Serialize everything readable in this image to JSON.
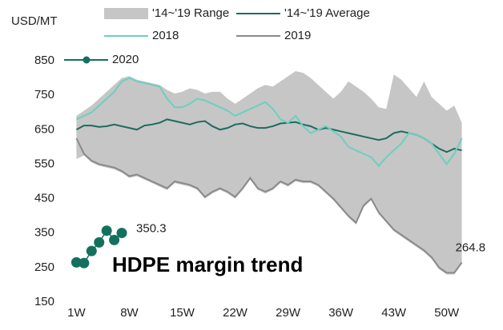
{
  "chart_data": {
    "type": "line",
    "y_label": "USD/MT",
    "annotation": "HDPE margin trend",
    "legend": "top",
    "x": [
      1,
      2,
      3,
      4,
      5,
      6,
      7,
      8,
      9,
      10,
      11,
      12,
      13,
      14,
      15,
      16,
      17,
      18,
      19,
      20,
      21,
      22,
      23,
      24,
      25,
      26,
      27,
      28,
      29,
      30,
      31,
      32,
      33,
      34,
      35,
      36,
      37,
      38,
      39,
      40,
      41,
      42,
      43,
      44,
      45,
      46,
      47,
      48,
      49,
      50,
      51,
      52
    ],
    "xlim": [
      0,
      53
    ],
    "xticks": [
      {
        "value": 1,
        "label": "1W"
      },
      {
        "value": 8,
        "label": "8W"
      },
      {
        "value": 15,
        "label": "15W"
      },
      {
        "value": 22,
        "label": "22W"
      },
      {
        "value": 29,
        "label": "29W"
      },
      {
        "value": 36,
        "label": "36W"
      },
      {
        "value": 43,
        "label": "43W"
      },
      {
        "value": 50,
        "label": "50W"
      }
    ],
    "ylim": [
      150,
      850
    ],
    "yticks": [
      150,
      250,
      350,
      450,
      550,
      650,
      750,
      850
    ],
    "band": {
      "name": "'14~'19 Range",
      "color": "#c6c6c6",
      "high": [
        690,
        705,
        720,
        740,
        760,
        780,
        800,
        805,
        795,
        790,
        785,
        780,
        765,
        755,
        760,
        770,
        765,
        755,
        760,
        760,
        740,
        725,
        740,
        755,
        770,
        780,
        775,
        790,
        805,
        820,
        815,
        800,
        780,
        760,
        740,
        760,
        790,
        775,
        760,
        740,
        715,
        710,
        810,
        795,
        770,
        745,
        790,
        745,
        725,
        705,
        720,
        670
      ],
      "low": [
        565,
        575,
        555,
        545,
        540,
        535,
        525,
        510,
        515,
        505,
        495,
        485,
        475,
        495,
        490,
        485,
        475,
        450,
        465,
        475,
        465,
        450,
        475,
        505,
        475,
        465,
        475,
        495,
        485,
        500,
        495,
        495,
        485,
        465,
        445,
        420,
        395,
        375,
        425,
        445,
        405,
        380,
        355,
        340,
        325,
        310,
        295,
        275,
        245,
        230,
        230,
        260
      ]
    },
    "series": [
      {
        "name": "'14~'19 Average",
        "color": "#1d6b60",
        "markers": false,
        "values": [
          650,
          662,
          662,
          658,
          660,
          665,
          660,
          655,
          650,
          662,
          665,
          670,
          680,
          675,
          670,
          665,
          672,
          675,
          660,
          650,
          655,
          665,
          668,
          660,
          655,
          655,
          660,
          668,
          670,
          672,
          665,
          660,
          650,
          655,
          650,
          645,
          640,
          635,
          630,
          625,
          620,
          625,
          640,
          645,
          640,
          635,
          625,
          610,
          595,
          585,
          595,
          590
        ]
      },
      {
        "name": "2018",
        "color": "#6ccfc0",
        "markers": false,
        "values": [
          680,
          690,
          700,
          720,
          740,
          760,
          790,
          800,
          790,
          785,
          780,
          775,
          740,
          715,
          715,
          725,
          740,
          735,
          725,
          715,
          705,
          690,
          700,
          710,
          720,
          730,
          710,
          680,
          670,
          690,
          660,
          640,
          650,
          660,
          645,
          630,
          600,
          590,
          580,
          570,
          545,
          570,
          590,
          610,
          640,
          635,
          625,
          610,
          580,
          550,
          580,
          625
        ]
      },
      {
        "name": "2019",
        "color": "#8a8a8a",
        "markers": false,
        "values": [
          625,
          580,
          560,
          550,
          545,
          540,
          530,
          515,
          520,
          510,
          500,
          490,
          480,
          500,
          495,
          490,
          480,
          455,
          470,
          480,
          470,
          455,
          480,
          510,
          480,
          470,
          480,
          500,
          490,
          505,
          500,
          500,
          490,
          470,
          450,
          425,
          400,
          380,
          430,
          450,
          410,
          385,
          360,
          345,
          330,
          315,
          300,
          280,
          250,
          235,
          235,
          264.8
        ]
      },
      {
        "name": "2020",
        "color": "#13705f",
        "markers": true,
        "values": [
          265,
          263,
          298,
          323,
          357,
          330,
          350.3,
          null,
          null,
          null,
          null,
          null,
          null,
          null,
          null,
          null,
          null,
          null,
          null,
          null,
          null,
          null,
          null,
          null,
          null,
          null,
          null,
          null,
          null,
          null,
          null,
          null,
          null,
          null,
          null,
          null,
          null,
          null,
          null,
          null,
          null,
          null,
          null,
          null,
          null,
          null,
          null,
          null,
          null,
          null,
          null,
          null
        ]
      }
    ]
  }
}
